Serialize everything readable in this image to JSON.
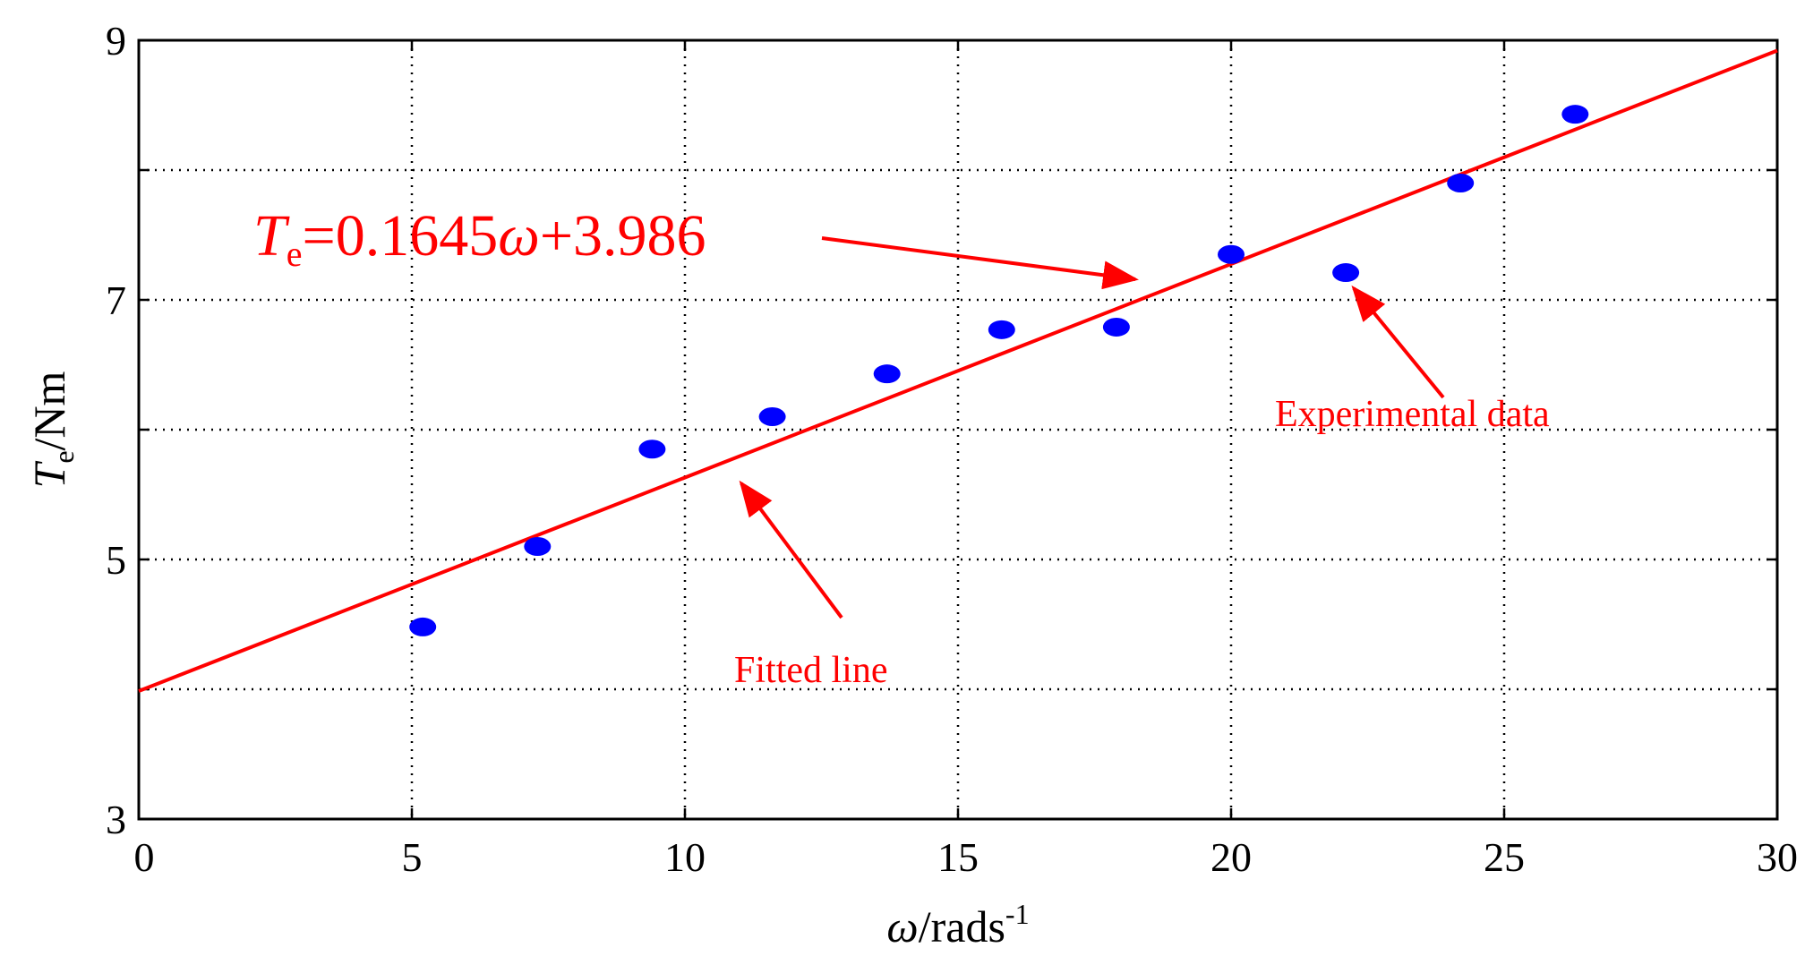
{
  "chart_data": {
    "type": "scatter",
    "xlim": [
      0,
      30
    ],
    "ylim": [
      3,
      9
    ],
    "xticks": [
      "0",
      "5",
      "10",
      "15",
      "20",
      "25",
      "30"
    ],
    "yticks": [
      "3",
      "5",
      "7",
      "9"
    ],
    "grid": true,
    "xlabel": {
      "symbol": "ω",
      "rest": "/rads",
      "sup": "-1"
    },
    "ylabel": {
      "symbol": "T",
      "sub": "e",
      "rest": "/Nm"
    },
    "series": [
      {
        "type": "scatter",
        "color": "#0000ff",
        "x": [
          5.2,
          7.3,
          9.4,
          11.6,
          13.7,
          15.8,
          17.9,
          20.0,
          22.1,
          24.2,
          26.3
        ],
        "y": [
          4.48,
          5.1,
          5.85,
          6.1,
          6.43,
          6.77,
          6.79,
          7.35,
          7.21,
          7.9,
          8.43
        ]
      },
      {
        "type": "line",
        "color": "#ff0000",
        "x": [
          0,
          30
        ],
        "y": [
          3.986,
          8.921
        ]
      }
    ],
    "annotations": {
      "equation": {
        "symbol": "T",
        "sub": "e",
        "rest": "=0.1645",
        "omega": "ω",
        "tail": "+3.986"
      },
      "fitted_line": "Fitted line",
      "experimental_data": "Experimental data"
    }
  }
}
